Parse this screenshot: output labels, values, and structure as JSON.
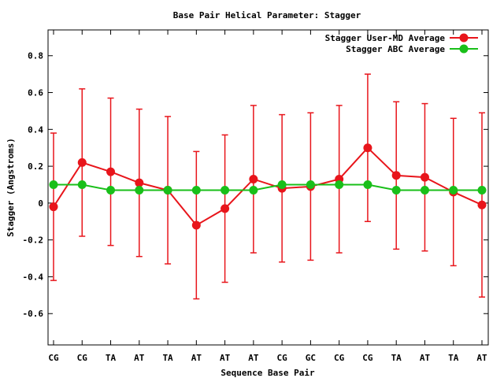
{
  "chart_data": {
    "type": "line",
    "title": "Base Pair Helical Parameter: Stagger",
    "xlabel": "Sequence Base Pair",
    "ylabel": "Stagger (Angstroms)",
    "categories": [
      "CG",
      "CG",
      "TA",
      "AT",
      "TA",
      "AT",
      "AT",
      "AT",
      "CG",
      "GC",
      "CG",
      "CG",
      "TA",
      "AT",
      "TA",
      "AT"
    ],
    "ylim": [
      -0.77,
      0.94
    ],
    "yticks": [
      -0.6,
      -0.4,
      -0.2,
      0,
      0.2,
      0.4,
      0.6,
      0.8
    ],
    "ytick_labels": [
      "-0.6",
      "-0.4",
      "-0.2",
      "0",
      "0.2",
      "0.4",
      "0.6",
      "0.8"
    ],
    "grid": false,
    "legend_position": "top-right",
    "series": [
      {
        "name": "Stagger User-MD Average",
        "color": "#e8151b",
        "values": [
          -0.02,
          0.22,
          0.17,
          0.11,
          0.07,
          -0.12,
          -0.03,
          0.13,
          0.08,
          0.09,
          0.13,
          0.3,
          0.15,
          0.14,
          0.06,
          -0.01
        ],
        "error": [
          0.4,
          0.4,
          0.4,
          0.4,
          0.4,
          0.4,
          0.4,
          0.4,
          0.4,
          0.4,
          0.4,
          0.4,
          0.4,
          0.4,
          0.4,
          0.5
        ]
      },
      {
        "name": "Stagger ABC Average",
        "color": "#19bf19",
        "values": [
          0.1,
          0.1,
          0.07,
          0.07,
          0.07,
          0.07,
          0.07,
          0.07,
          0.1,
          0.1,
          0.1,
          0.1,
          0.07,
          0.07,
          0.07,
          0.07
        ]
      }
    ]
  }
}
